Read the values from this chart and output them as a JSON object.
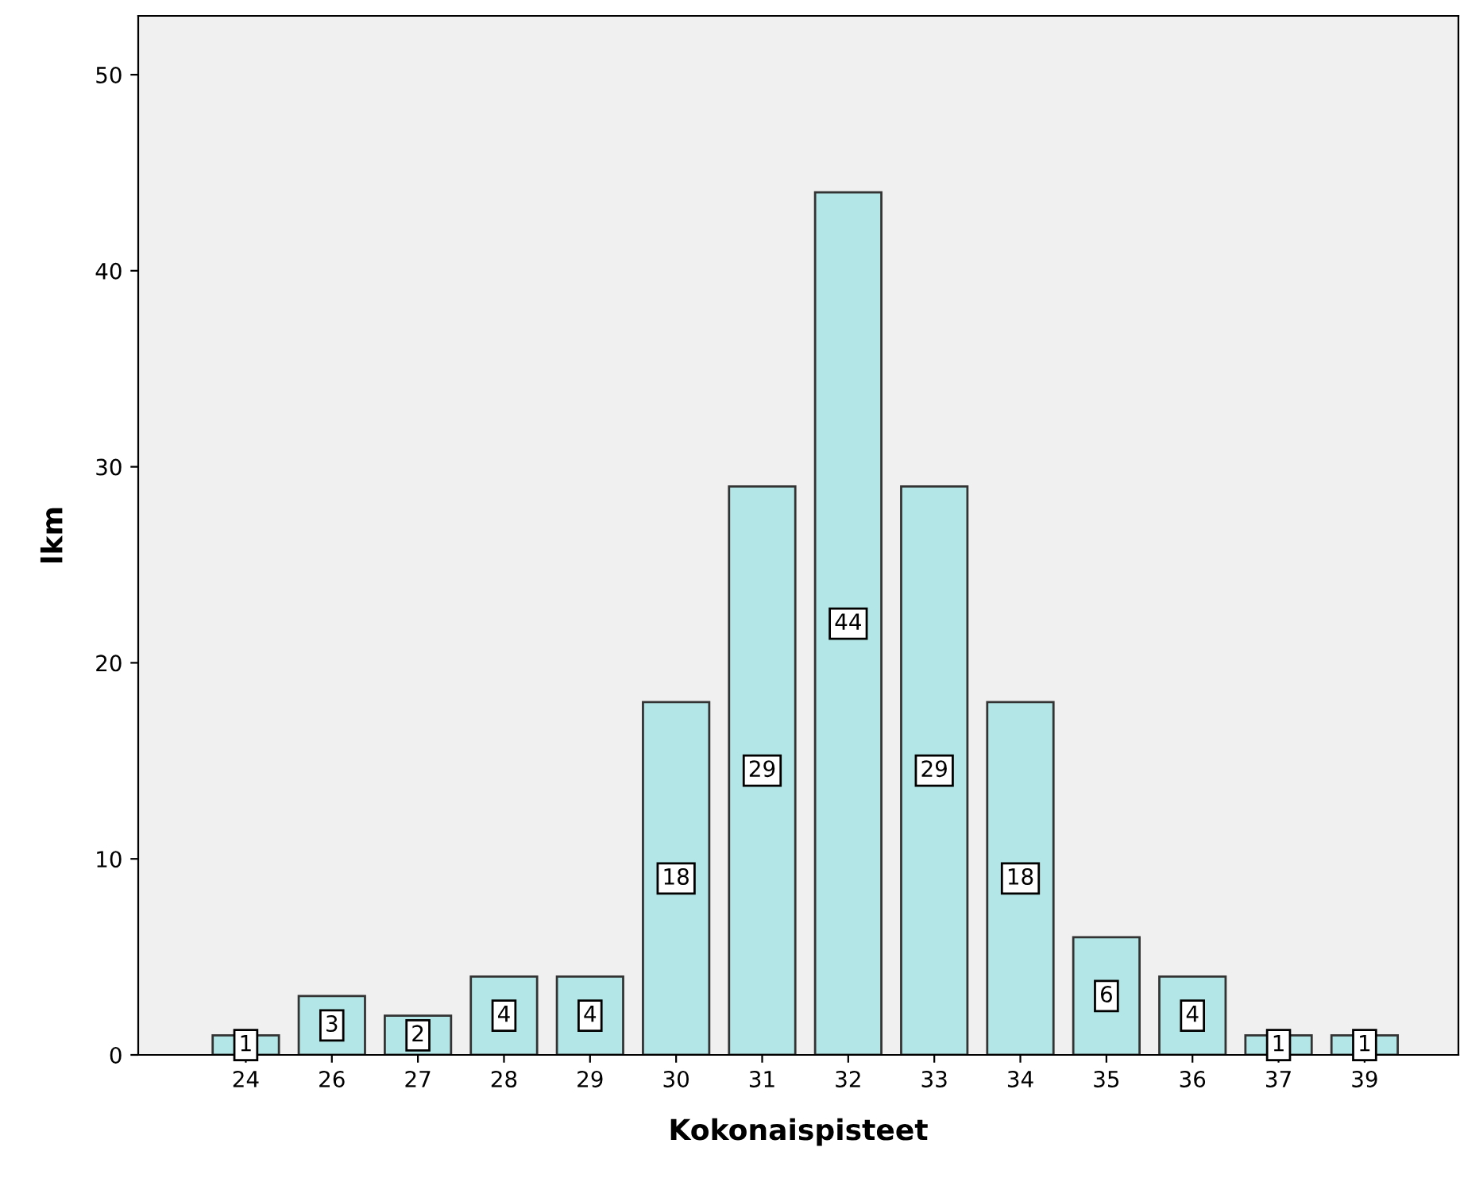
{
  "chart_data": {
    "type": "bar",
    "xlabel": "Kokonaispisteet",
    "ylabel": "lkm",
    "categories": [
      "24",
      "26",
      "27",
      "28",
      "29",
      "30",
      "31",
      "32",
      "33",
      "34",
      "35",
      "36",
      "37",
      "39"
    ],
    "values": [
      1,
      3,
      2,
      4,
      4,
      18,
      29,
      44,
      29,
      18,
      6,
      4,
      1,
      1
    ],
    "color": "#b3e6e6",
    "ylim": [
      0,
      53
    ],
    "yticks": [
      0,
      10,
      20,
      30,
      40,
      50
    ],
    "data_labels": true,
    "grid": false,
    "legend": false
  }
}
